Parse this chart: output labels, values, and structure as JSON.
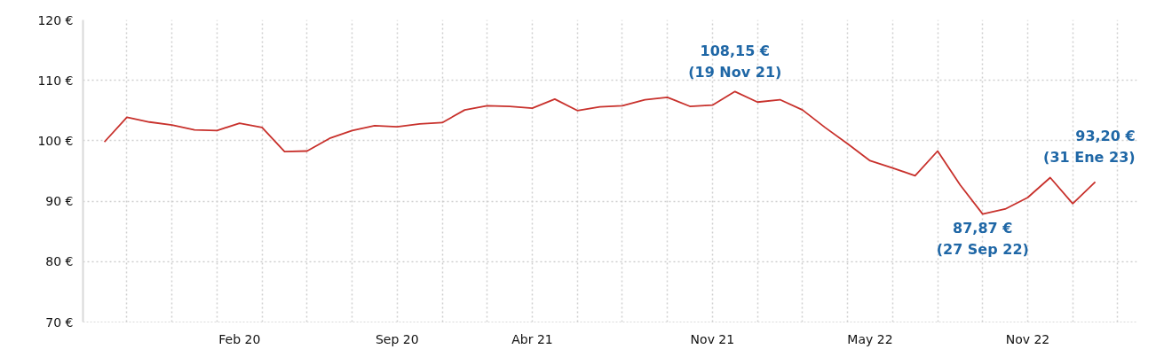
{
  "chart_data": {
    "type": "line",
    "categories": [
      null,
      null,
      null,
      null,
      null,
      null,
      "Feb 20",
      null,
      null,
      null,
      null,
      null,
      null,
      "Sep 20",
      null,
      null,
      null,
      null,
      null,
      "Abr 21",
      null,
      null,
      null,
      null,
      null,
      null,
      null,
      "Nov 21",
      null,
      null,
      null,
      null,
      null,
      null,
      "May 22",
      null,
      null,
      null,
      null,
      null,
      null,
      "Nov 22",
      null,
      null,
      null
    ],
    "series": [
      {
        "color": "#c8312c",
        "values": [
          99.8,
          103.9,
          103.1,
          102.6,
          101.8,
          101.7,
          102.9,
          102.2,
          98.2,
          98.3,
          100.4,
          101.7,
          102.5,
          102.3,
          102.8,
          103.0,
          105.1,
          105.8,
          105.7,
          105.4,
          106.9,
          105.0,
          105.6,
          105.8,
          106.8,
          107.2,
          105.7,
          105.9,
          108.15,
          106.4,
          106.8,
          105.1,
          102.2,
          99.5,
          96.7,
          95.5,
          94.2,
          98.3,
          92.7,
          87.87,
          88.7,
          90.6,
          93.9,
          89.6,
          93.2
        ]
      }
    ],
    "ylim": [
      70,
      120
    ],
    "yticks": [
      {
        "value": 70,
        "label": "70 €"
      },
      {
        "value": 80,
        "label": "80 €"
      },
      {
        "value": 90,
        "label": "90 €"
      },
      {
        "value": 100,
        "label": "100 €"
      },
      {
        "value": 110,
        "label": "110 €"
      },
      {
        "value": 120,
        "label": "120 €"
      }
    ],
    "annotations": [
      {
        "text": "108,15 €\n(19 Nov 21)",
        "y": 108.15
      },
      {
        "text": "87,87 €\n(27 Sep 22)",
        "y": 87.87
      },
      {
        "text": "93,20 €\n(31 Ene 23)",
        "y": 93.2
      }
    ],
    "grid": true,
    "marker": "none",
    "line_style": "solid"
  }
}
